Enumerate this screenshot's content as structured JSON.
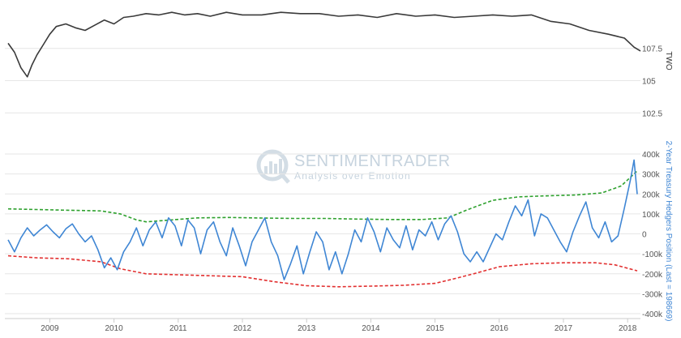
{
  "watermark": {
    "brand": "SENTIMENTRADER",
    "tagline": "Analysis over Emotion"
  },
  "chart_data": [
    {
      "type": "line",
      "ylabel": "TWO",
      "ylim": [
        101.2,
        110.5
      ],
      "yticks": [
        "107.5",
        "105",
        "102.5"
      ],
      "ytick_values": [
        107.5,
        105,
        102.5
      ],
      "x_range": [
        2008.3,
        2018.2
      ],
      "series": [
        {
          "color": "#3a3a3a",
          "x": [
            2008.35,
            2008.45,
            2008.55,
            2008.65,
            2008.72,
            2008.8,
            2008.9,
            2009.0,
            2009.1,
            2009.25,
            2009.4,
            2009.55,
            2009.7,
            2009.85,
            2010.0,
            2010.15,
            2010.3,
            2010.5,
            2010.7,
            2010.9,
            2011.1,
            2011.3,
            2011.5,
            2011.75,
            2012.0,
            2012.3,
            2012.6,
            2012.9,
            2013.2,
            2013.5,
            2013.8,
            2014.1,
            2014.4,
            2014.7,
            2015.0,
            2015.3,
            2015.6,
            2015.9,
            2016.2,
            2016.5,
            2016.8,
            2017.1,
            2017.4,
            2017.7,
            2017.95,
            2018.1,
            2018.2
          ],
          "values": [
            107.9,
            107.2,
            106.0,
            105.3,
            106.2,
            107.0,
            107.8,
            108.6,
            109.2,
            109.4,
            109.1,
            108.9,
            109.3,
            109.7,
            109.4,
            109.9,
            110.0,
            110.2,
            110.1,
            110.3,
            110.1,
            110.2,
            110.0,
            110.3,
            110.1,
            110.1,
            110.3,
            110.2,
            110.2,
            110.0,
            110.1,
            109.9,
            110.2,
            110.0,
            110.1,
            109.9,
            110.0,
            110.1,
            110.0,
            110.1,
            109.6,
            109.4,
            108.9,
            108.6,
            108.3,
            107.6,
            107.3
          ]
        }
      ]
    },
    {
      "type": "line",
      "ylabel": "2-Year Treasury Hedgers Position (Last = 198669)",
      "ylim": [
        -400000,
        400000
      ],
      "yticks": [
        "400k",
        "300k",
        "200k",
        "100k",
        "0",
        "-100k",
        "-200k",
        "-300k",
        "-400k"
      ],
      "ytick_values": [
        400000,
        300000,
        200000,
        100000,
        0,
        -100000,
        -200000,
        -300000,
        -400000
      ],
      "xticks": [
        "2009",
        "2010",
        "2011",
        "2012",
        "2013",
        "2014",
        "2015",
        "2016",
        "2017",
        "2018"
      ],
      "xtick_values": [
        2009,
        2010,
        2011,
        2012,
        2013,
        2014,
        2015,
        2016,
        2017,
        2018
      ],
      "x_range": [
        2008.3,
        2018.2
      ],
      "series": [
        {
          "color": "#3f86d4",
          "x": [
            2008.35,
            2008.45,
            2008.55,
            2008.65,
            2008.75,
            2008.85,
            2008.95,
            2009.05,
            2009.15,
            2009.25,
            2009.35,
            2009.45,
            2009.55,
            2009.65,
            2009.75,
            2009.85,
            2009.95,
            2010.05,
            2010.15,
            2010.25,
            2010.35,
            2010.45,
            2010.55,
            2010.65,
            2010.75,
            2010.85,
            2010.95,
            2011.05,
            2011.15,
            2011.25,
            2011.35,
            2011.45,
            2011.55,
            2011.65,
            2011.75,
            2011.85,
            2011.95,
            2012.05,
            2012.15,
            2012.25,
            2012.35,
            2012.45,
            2012.55,
            2012.65,
            2012.75,
            2012.85,
            2012.95,
            2013.05,
            2013.15,
            2013.25,
            2013.35,
            2013.45,
            2013.55,
            2013.65,
            2013.75,
            2013.85,
            2013.95,
            2014.05,
            2014.15,
            2014.25,
            2014.35,
            2014.45,
            2014.55,
            2014.65,
            2014.75,
            2014.85,
            2014.95,
            2015.05,
            2015.15,
            2015.25,
            2015.35,
            2015.45,
            2015.55,
            2015.65,
            2015.75,
            2015.85,
            2015.95,
            2016.05,
            2016.15,
            2016.25,
            2016.35,
            2016.45,
            2016.55,
            2016.65,
            2016.75,
            2016.85,
            2016.95,
            2017.05,
            2017.15,
            2017.25,
            2017.35,
            2017.45,
            2017.55,
            2017.65,
            2017.75,
            2017.85,
            2017.95,
            2018.05,
            2018.1,
            2018.15
          ],
          "values": [
            -30000,
            -90000,
            -20000,
            30000,
            -10000,
            20000,
            45000,
            10000,
            -20000,
            25000,
            50000,
            0,
            -40000,
            -10000,
            -80000,
            -170000,
            -120000,
            -180000,
            -90000,
            -40000,
            30000,
            -60000,
            20000,
            60000,
            -20000,
            80000,
            40000,
            -60000,
            70000,
            30000,
            -100000,
            20000,
            60000,
            -40000,
            -110000,
            30000,
            -60000,
            -160000,
            -40000,
            20000,
            80000,
            -40000,
            -110000,
            -230000,
            -150000,
            -60000,
            -200000,
            -90000,
            10000,
            -40000,
            -180000,
            -90000,
            -200000,
            -100000,
            20000,
            -40000,
            80000,
            10000,
            -90000,
            30000,
            -30000,
            -70000,
            40000,
            -80000,
            20000,
            -10000,
            60000,
            -30000,
            50000,
            90000,
            10000,
            -100000,
            -140000,
            -90000,
            -140000,
            -70000,
            0,
            -30000,
            60000,
            140000,
            90000,
            170000,
            -10000,
            100000,
            80000,
            20000,
            -40000,
            -90000,
            10000,
            90000,
            160000,
            30000,
            -20000,
            60000,
            -40000,
            -10000,
            130000,
            280000,
            370000,
            198669
          ]
        },
        {
          "color": "#2ea12e",
          "style": "dashed",
          "x": [
            2008.35,
            2008.8,
            2009.3,
            2009.8,
            2010.1,
            2010.35,
            2010.5,
            2010.9,
            2011.3,
            2011.8,
            2012.3,
            2012.8,
            2013.3,
            2013.8,
            2014.3,
            2014.8,
            2015.2,
            2015.5,
            2015.9,
            2016.3,
            2016.7,
            2017.2,
            2017.6,
            2017.9,
            2018.15
          ],
          "values": [
            125000,
            122000,
            118000,
            115000,
            100000,
            70000,
            60000,
            70000,
            80000,
            82000,
            79000,
            77000,
            77000,
            74000,
            72000,
            72000,
            80000,
            120000,
            168000,
            185000,
            190000,
            195000,
            205000,
            240000,
            315000
          ]
        },
        {
          "color": "#e23030",
          "style": "dashed",
          "x": [
            2008.35,
            2008.8,
            2009.3,
            2009.8,
            2010.1,
            2010.5,
            2011.0,
            2011.5,
            2012.0,
            2012.5,
            2013.0,
            2013.5,
            2014.0,
            2014.5,
            2015.0,
            2015.3,
            2015.6,
            2016.0,
            2016.5,
            2017.0,
            2017.5,
            2017.8,
            2018.15
          ],
          "values": [
            -110000,
            -120000,
            -125000,
            -140000,
            -175000,
            -200000,
            -205000,
            -210000,
            -215000,
            -240000,
            -260000,
            -265000,
            -262000,
            -258000,
            -248000,
            -225000,
            -200000,
            -165000,
            -150000,
            -145000,
            -145000,
            -155000,
            -185000
          ]
        }
      ]
    }
  ]
}
